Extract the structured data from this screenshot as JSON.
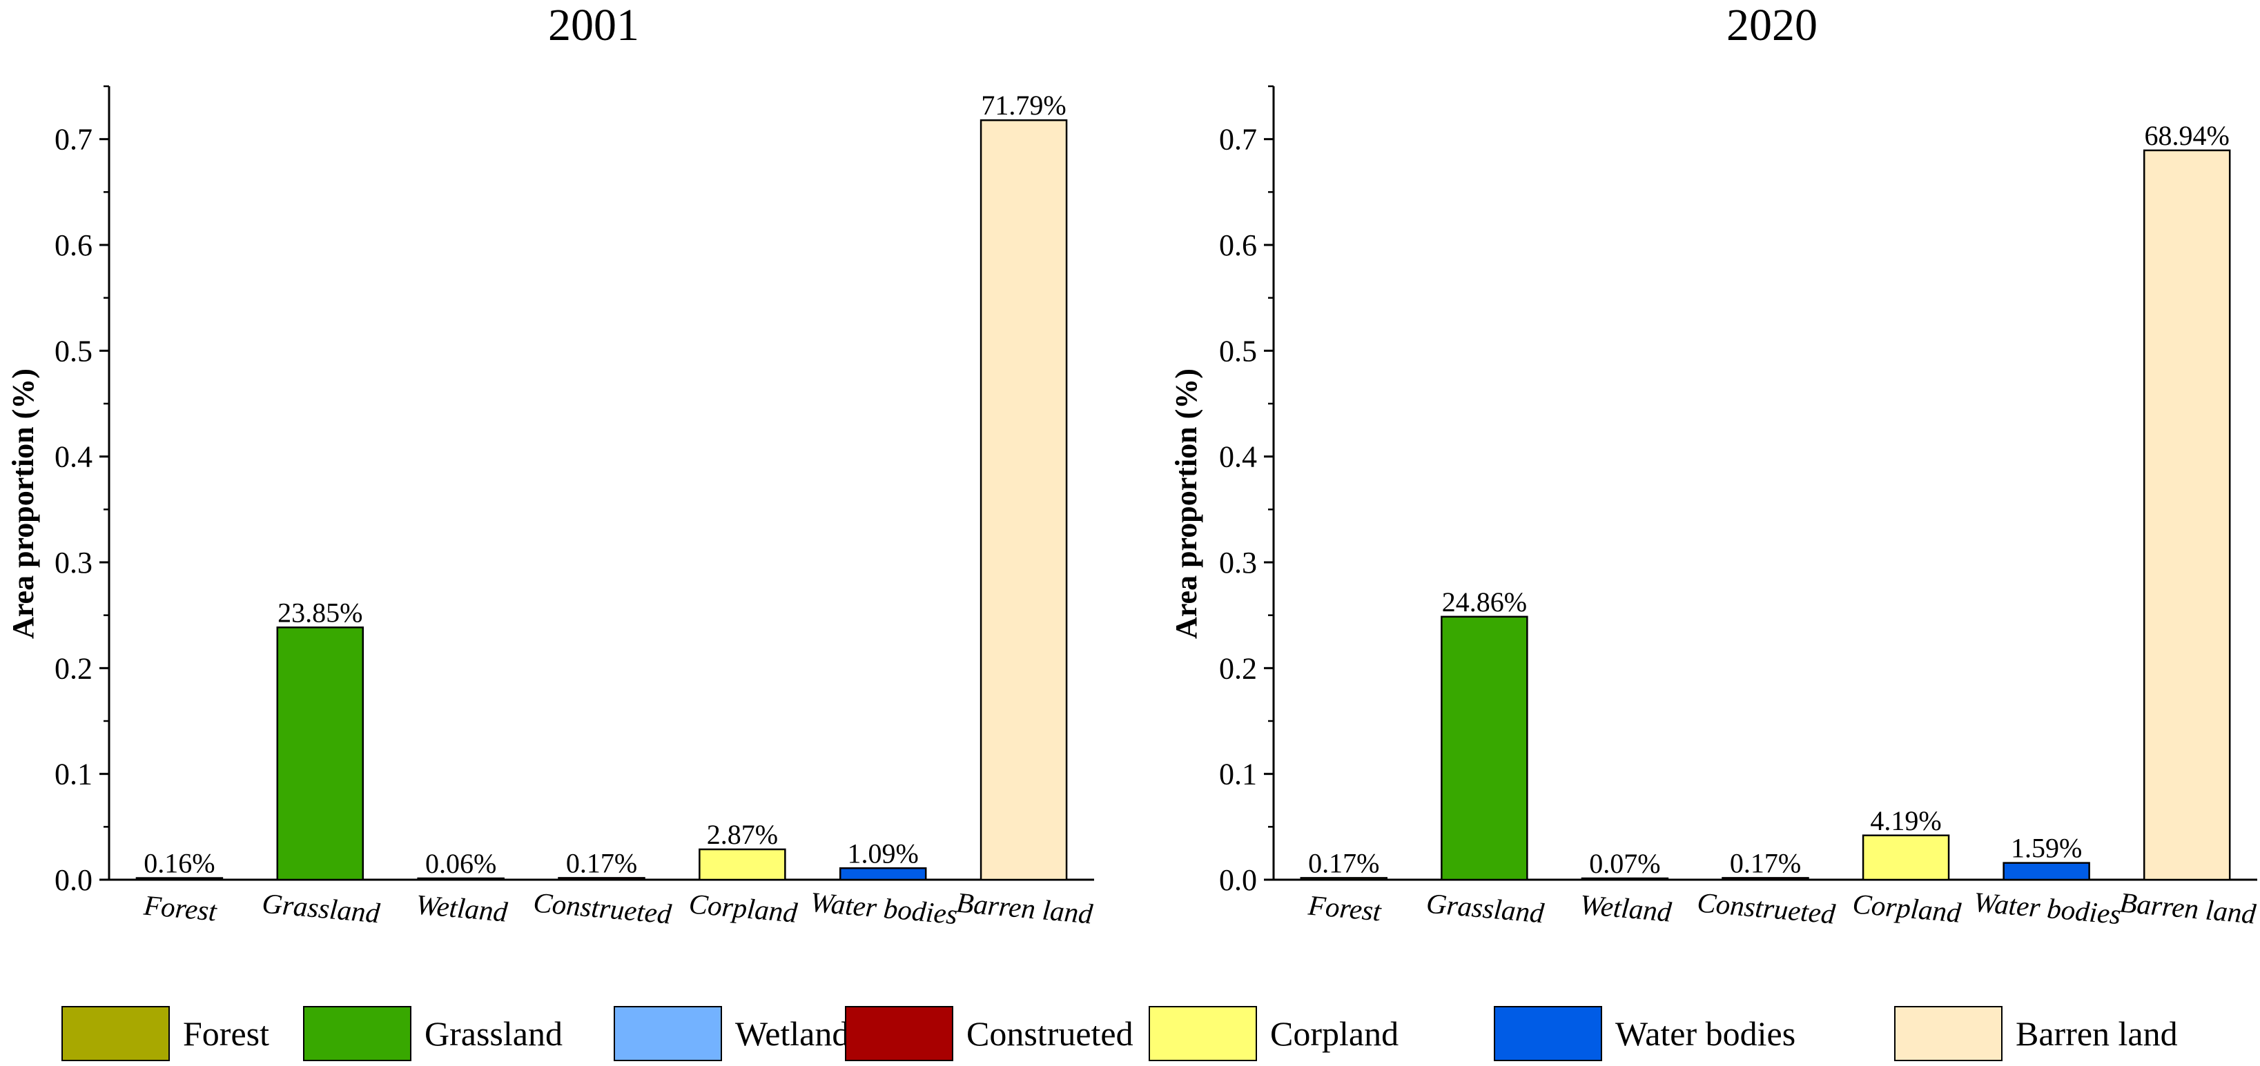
{
  "chart_data": [
    {
      "type": "bar",
      "title": "2001",
      "ylabel": "Area proportion (%)",
      "xlabel": "",
      "ylim": [
        0,
        0.75
      ],
      "yticks": [
        "0.0",
        "0.1",
        "0.2",
        "0.3",
        "0.4",
        "0.5",
        "0.6",
        "0.7"
      ],
      "categories": [
        "Forest",
        "Grassland",
        "Wetland",
        "Construeted",
        "Corpland",
        "Water bodies",
        "Barren land"
      ],
      "values": [
        0.0016,
        0.2385,
        0.0006,
        0.0017,
        0.0287,
        0.0109,
        0.7179
      ],
      "labels": [
        "0.16%",
        "23.85%",
        "0.06%",
        "0.17%",
        "2.87%",
        "1.09%",
        "71.79%"
      ]
    },
    {
      "type": "bar",
      "title": "2020",
      "ylabel": "Area proportion (%)",
      "xlabel": "",
      "ylim": [
        0,
        0.75
      ],
      "yticks": [
        "0.0",
        "0.1",
        "0.2",
        "0.3",
        "0.4",
        "0.5",
        "0.6",
        "0.7"
      ],
      "categories": [
        "Forest",
        "Grassland",
        "Wetland",
        "Construeted",
        "Corpland",
        "Water bodies",
        "Barren land"
      ],
      "values": [
        0.0017,
        0.2486,
        0.0007,
        0.0017,
        0.0419,
        0.0159,
        0.6894
      ],
      "labels": [
        "0.17%",
        "24.86%",
        "0.07%",
        "0.17%",
        "4.19%",
        "1.59%",
        "68.94%"
      ]
    }
  ],
  "legend": {
    "items": [
      {
        "label": "Forest",
        "color": "#a8a800"
      },
      {
        "label": "Grassland",
        "color": "#38a800"
      },
      {
        "label": "Wetland",
        "color": "#73b2ff"
      },
      {
        "label": "Construeted",
        "color": "#a80000"
      },
      {
        "label": "Corpland",
        "color": "#ffff73"
      },
      {
        "label": "Water bodies",
        "color": "#005ce6"
      },
      {
        "label": "Barren land",
        "color": "#ffebc4"
      }
    ]
  }
}
